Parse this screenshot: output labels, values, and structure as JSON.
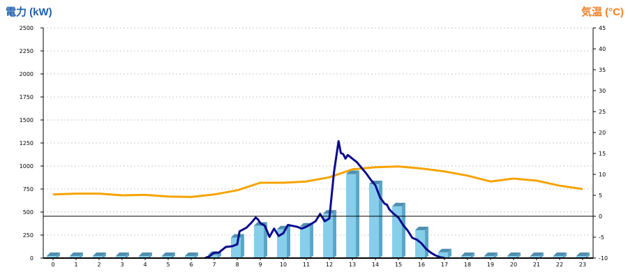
{
  "chart_data": {
    "type": "bar+line",
    "left_axis_label": "電力 (kW)",
    "right_axis_label": "気温 (°C)",
    "colors": {
      "left_title": "#1f5fae",
      "right_title": "#f0802a",
      "bar_face": "#87ceeb",
      "bar_side": "#5aa6c8",
      "bar_top": "#4f8fb0",
      "power_line": "#0a0a8c",
      "temp_line": "#f5a300",
      "grid": "#c8c8c8",
      "axis": "#000000"
    },
    "ylim_left": [
      0,
      2500
    ],
    "yticks_left": [
      "0",
      "250",
      "500",
      "750",
      "1000",
      "1250",
      "1500",
      "1750",
      "2000",
      "2250",
      "2500"
    ],
    "ylim_right": [
      -10,
      45
    ],
    "yticks_right": [
      "-10",
      "-5",
      "0",
      "5",
      "10",
      "15",
      "20",
      "25",
      "30",
      "35",
      "40",
      "45"
    ],
    "categories": [
      "0",
      "1",
      "2",
      "3",
      "4",
      "5",
      "6",
      "7",
      "8",
      "9",
      "10",
      "11",
      "12",
      "13",
      "14",
      "15",
      "16",
      "17",
      "18",
      "19",
      "20",
      "21",
      "22",
      "23"
    ],
    "bars": [
      0,
      0,
      0,
      0,
      0,
      0,
      0,
      10,
      200,
      330,
      290,
      320,
      460,
      890,
      780,
      540,
      280,
      40,
      0,
      0,
      0,
      0,
      0,
      0
    ],
    "temperature": [
      5.2,
      5.4,
      5.4,
      5.0,
      5.1,
      4.7,
      4.6,
      5.2,
      6.2,
      8.0,
      8.0,
      8.3,
      9.3,
      11.2,
      11.7,
      11.9,
      11.4,
      10.7,
      9.7,
      8.3,
      9.0,
      8.5,
      7.3,
      6.5
    ],
    "power_line": {
      "x": [
        6.6,
        6.8,
        7.0,
        7.2,
        7.5,
        7.8,
        8.0,
        8.1,
        8.4,
        8.6,
        8.8,
        8.9,
        9.0,
        9.2,
        9.4,
        9.6,
        9.8,
        10.0,
        10.2,
        10.4,
        10.6,
        10.8,
        11.0,
        11.2,
        11.4,
        11.6,
        11.8,
        12.0,
        12.2,
        12.4,
        12.5,
        12.6,
        12.7,
        12.8,
        12.9,
        13.0,
        13.2,
        13.4,
        13.6,
        13.8,
        14.0,
        14.2,
        14.4,
        14.5,
        14.6,
        14.8,
        15.0,
        15.2,
        15.4,
        15.6,
        15.8,
        16.0,
        16.2,
        16.4,
        16.6,
        16.8,
        17.0
      ],
      "y": [
        0,
        20,
        60,
        60,
        120,
        130,
        150,
        290,
        330,
        380,
        440,
        420,
        380,
        350,
        230,
        320,
        240,
        270,
        360,
        350,
        340,
        320,
        340,
        370,
        400,
        480,
        400,
        430,
        930,
        1270,
        1140,
        1130,
        1080,
        1120,
        1100,
        1080,
        1040,
        980,
        920,
        850,
        790,
        660,
        590,
        580,
        530,
        480,
        440,
        360,
        300,
        220,
        200,
        160,
        100,
        60,
        30,
        10,
        0
      ]
    }
  }
}
